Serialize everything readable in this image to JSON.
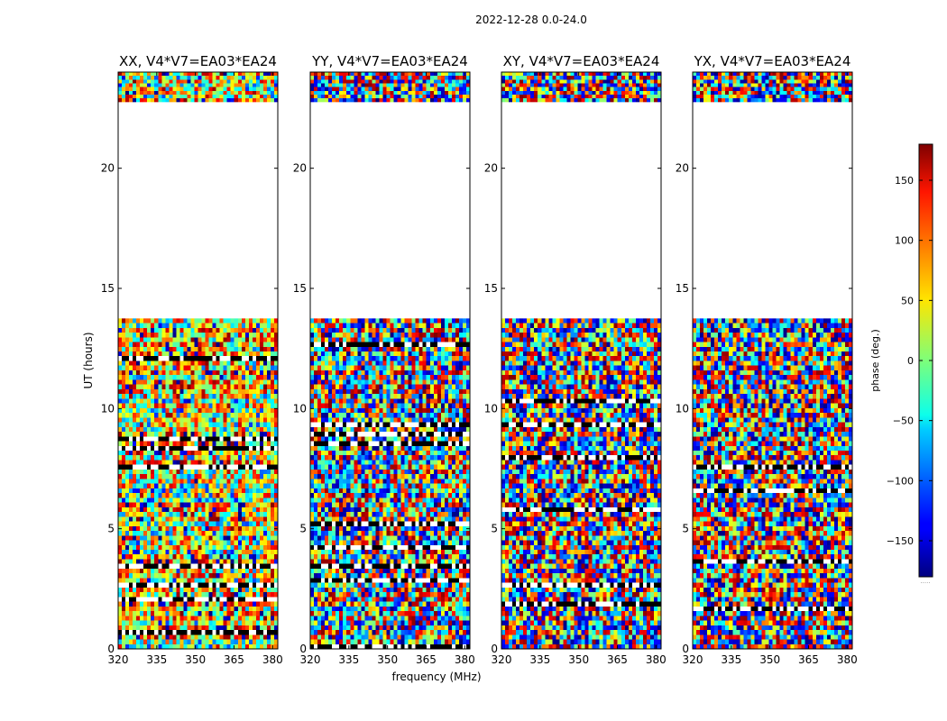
{
  "chart_data": {
    "type": "heatmap",
    "suptitle": "2022-12-28 0.0-24.0",
    "xlabel": "frequency (MHz)",
    "ylabel": "UT (hours)",
    "xlim": [
      320,
      382
    ],
    "ylim": [
      0,
      24
    ],
    "xticks": [
      320,
      335,
      350,
      365,
      380
    ],
    "yticks": [
      0,
      5,
      10,
      15,
      20
    ],
    "panels": [
      {
        "title": "XX, V4*V7=EA03*EA24",
        "pol": "XX"
      },
      {
        "title": "YY, V4*V7=EA03*EA24",
        "pol": "YY"
      },
      {
        "title": "XY, V4*V7=EA03*EA24",
        "pol": "XY"
      },
      {
        "title": "YX, V4*V7=EA03*EA24",
        "pol": "YX"
      }
    ],
    "data_time_ranges_hours": [
      [
        0,
        13.75
      ],
      [
        22.75,
        24
      ]
    ],
    "blank_time_range_hours": [
      13.75,
      22.75
    ],
    "colorbar": {
      "label": "phase (deg.)",
      "range": [
        -180,
        180
      ],
      "ticks": [
        -150,
        -100,
        -50,
        0,
        50,
        100,
        150
      ],
      "tick_labels": [
        "−150",
        "−100",
        "−50",
        "0",
        "50",
        "100",
        "150"
      ],
      "colormap": "jet",
      "footer": "....."
    }
  }
}
